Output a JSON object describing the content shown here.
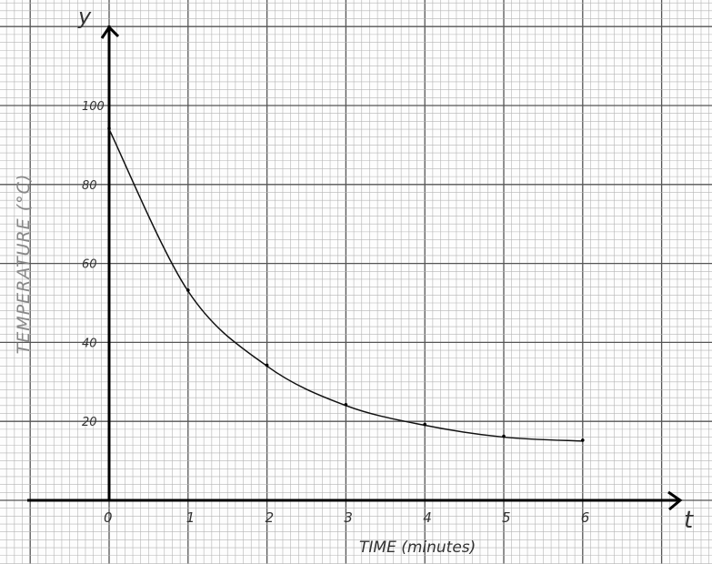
{
  "chart_data": {
    "type": "line",
    "title": "",
    "xlabel": "TIME (minutes)",
    "ylabel": "TEMPERATURE (°C)",
    "x_axis_symbol": "t",
    "y_axis_symbol": "y",
    "xlim": [
      -1,
      7.5
    ],
    "ylim": [
      -7,
      127
    ],
    "x_ticks": [
      "0",
      "1",
      "2",
      "3",
      "4",
      "5",
      "6"
    ],
    "y_ticks": [
      "20",
      "40",
      "60",
      "80",
      "100"
    ],
    "grid": true,
    "style": "hand-drawn on graph paper",
    "x": [
      0,
      1,
      2,
      3,
      4,
      5,
      6
    ],
    "y": [
      94,
      53,
      34,
      24,
      19,
      16,
      15
    ],
    "colors": {
      "grid_minor": "#b5b5b5",
      "grid_major": "#555555",
      "line": "#111111",
      "label": "#888888"
    }
  }
}
